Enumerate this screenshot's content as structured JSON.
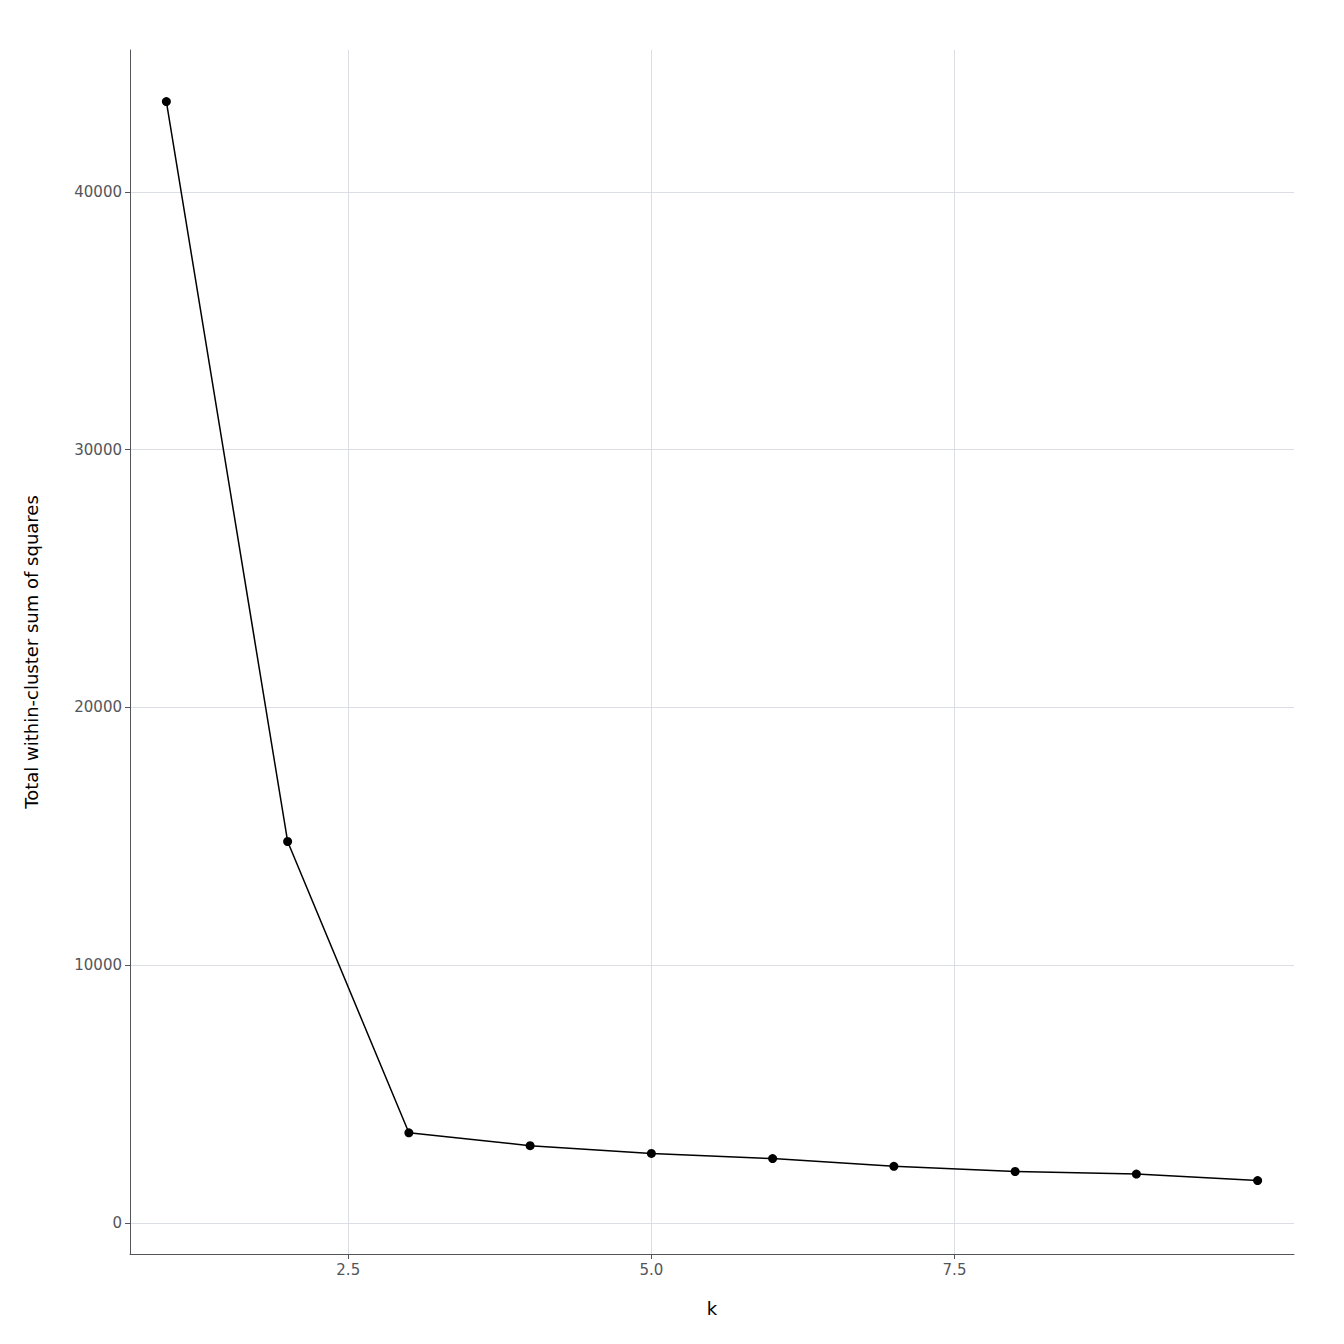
{
  "chart_data": {
    "type": "line",
    "x": [
      1,
      2,
      3,
      4,
      5,
      6,
      7,
      8,
      9,
      10
    ],
    "values": [
      43500,
      14800,
      3500,
      3000,
      2700,
      2500,
      2200,
      2000,
      1900,
      1650
    ],
    "xlabel": "k",
    "ylabel": "Total within-cluster sum of squares",
    "xlim": [
      0.7,
      10.3
    ],
    "ylim": [
      -1200,
      45500
    ],
    "xticks": [
      2.5,
      {
        "value": 5.0,
        "label": "5.0"
      },
      7.5
    ],
    "yticks": [
      0,
      10000,
      20000,
      30000,
      40000
    ],
    "color": "#000000",
    "marker": "circle",
    "grid": true
  }
}
